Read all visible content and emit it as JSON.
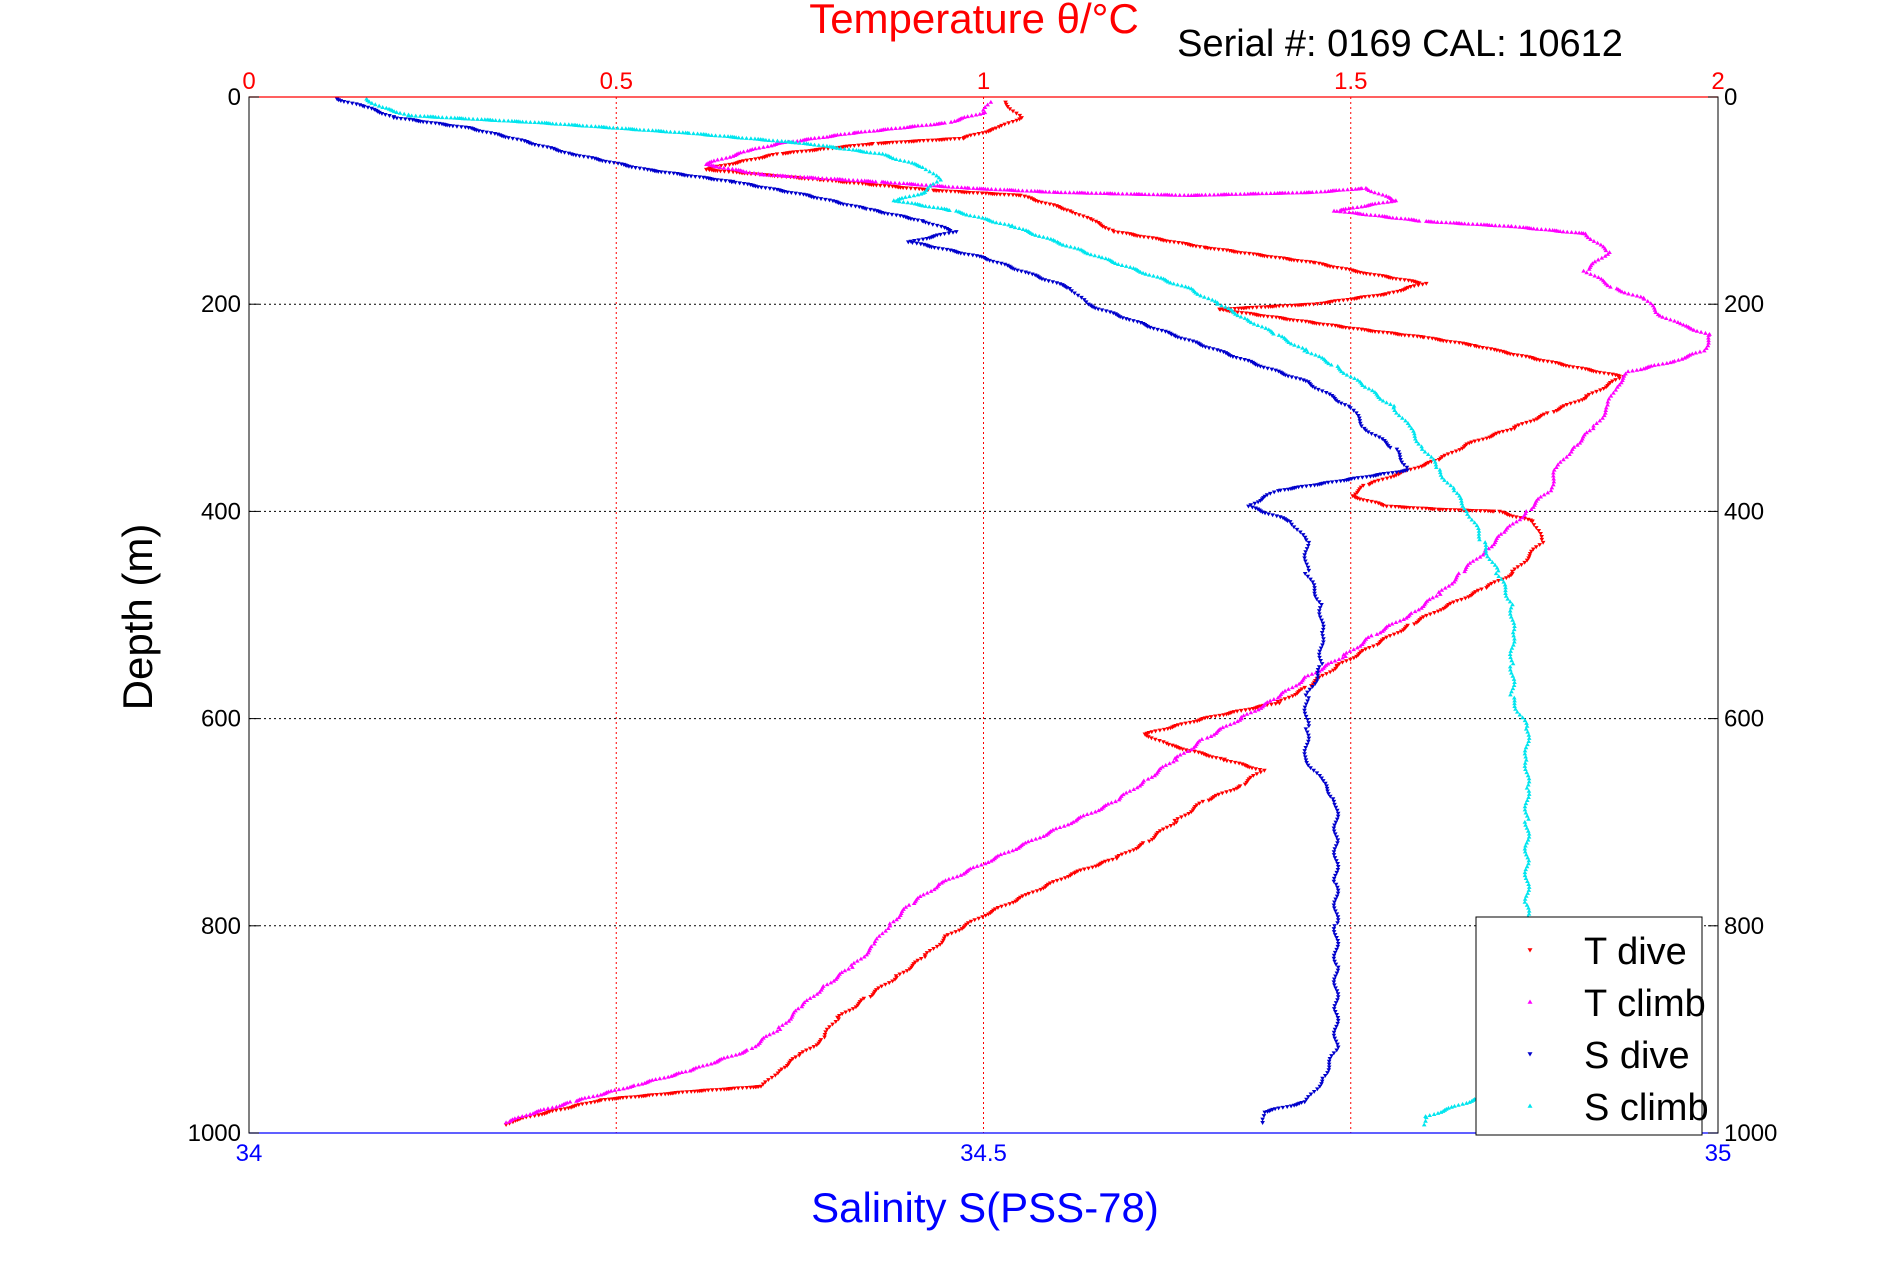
{
  "chart_data": {
    "type": "scatter",
    "title": "Temperature θ/°C",
    "subtitle": "Serial #: 0169 CAL: 10612",
    "ylabel": "Depth (m)",
    "xlabel_bottom": "Salinity S(PSS-78)",
    "xlabel_top": "Temperature θ/°C",
    "ylim": [
      0,
      1000
    ],
    "y_reversed": true,
    "xlim_temperature": [
      0,
      2
    ],
    "xlim_salinity": [
      34,
      35
    ],
    "y_ticks": [
      "0",
      "200",
      "400",
      "600",
      "800",
      "1000"
    ],
    "y_tick_values": [
      0,
      200,
      400,
      600,
      800,
      1000
    ],
    "top_ticks": [
      "0",
      "0.5",
      "1",
      "1.5",
      "2"
    ],
    "top_tick_values": [
      0,
      0.5,
      1,
      1.5,
      2
    ],
    "bottom_ticks": [
      "34",
      "34.5",
      "35"
    ],
    "bottom_tick_values": [
      34,
      34.5,
      35
    ],
    "grid": true,
    "legend_position": "bottom-right",
    "colors": {
      "t_dive": "#ff0000",
      "t_climb": "#ff00ff",
      "s_dive": "#0000cc",
      "s_climb": "#00e5ee",
      "axis_top": "#ff0000",
      "axis_bottom": "#0000ff",
      "grid_v": "#ff0000",
      "grid_h": "#000000"
    },
    "series": [
      {
        "name": "T dive",
        "axis": "temperature",
        "marker": "down-triangle",
        "points": [
          [
            1.03,
            5
          ],
          [
            1.05,
            20
          ],
          [
            1.02,
            30
          ],
          [
            0.97,
            40
          ],
          [
            0.85,
            45
          ],
          [
            0.72,
            55
          ],
          [
            0.62,
            70
          ],
          [
            0.78,
            80
          ],
          [
            0.93,
            90
          ],
          [
            1.05,
            95
          ],
          [
            1.12,
            110
          ],
          [
            1.15,
            120
          ],
          [
            1.18,
            130
          ],
          [
            1.3,
            145
          ],
          [
            1.45,
            160
          ],
          [
            1.52,
            170
          ],
          [
            1.6,
            180
          ],
          [
            1.55,
            190
          ],
          [
            1.45,
            200
          ],
          [
            1.32,
            205
          ],
          [
            1.42,
            215
          ],
          [
            1.52,
            225
          ],
          [
            1.6,
            232
          ],
          [
            1.67,
            240
          ],
          [
            1.7,
            245
          ],
          [
            1.8,
            260
          ],
          [
            1.87,
            270
          ],
          [
            1.82,
            290
          ],
          [
            1.77,
            305
          ],
          [
            1.72,
            320
          ],
          [
            1.66,
            335
          ],
          [
            1.62,
            350
          ],
          [
            1.56,
            365
          ],
          [
            1.52,
            375
          ],
          [
            1.5,
            385
          ],
          [
            1.55,
            395
          ],
          [
            1.62,
            398
          ],
          [
            1.7,
            400
          ],
          [
            1.75,
            410
          ],
          [
            1.76,
            430
          ],
          [
            1.72,
            460
          ],
          [
            1.68,
            475
          ],
          [
            1.62,
            495
          ],
          [
            1.58,
            510
          ],
          [
            1.53,
            530
          ],
          [
            1.48,
            550
          ],
          [
            1.44,
            570
          ],
          [
            1.4,
            585
          ],
          [
            1.3,
            600
          ],
          [
            1.22,
            615
          ],
          [
            1.25,
            625
          ],
          [
            1.33,
            640
          ],
          [
            1.38,
            650
          ],
          [
            1.35,
            665
          ],
          [
            1.3,
            680
          ],
          [
            1.26,
            700
          ],
          [
            1.22,
            720
          ],
          [
            1.18,
            735
          ],
          [
            1.12,
            750
          ],
          [
            1.06,
            770
          ],
          [
            1.0,
            790
          ],
          [
            0.95,
            810
          ],
          [
            0.92,
            830
          ],
          [
            0.88,
            850
          ],
          [
            0.84,
            870
          ],
          [
            0.8,
            890
          ],
          [
            0.78,
            910
          ],
          [
            0.75,
            925
          ],
          [
            0.72,
            940
          ],
          [
            0.7,
            955
          ],
          [
            0.6,
            960
          ],
          [
            0.48,
            968
          ],
          [
            0.42,
            978
          ],
          [
            0.36,
            988
          ],
          [
            0.35,
            992
          ]
        ]
      },
      {
        "name": "T climb",
        "axis": "temperature",
        "marker": "up-triangle",
        "points": [
          [
            1.01,
            5
          ],
          [
            1.0,
            15
          ],
          [
            0.95,
            25
          ],
          [
            0.82,
            35
          ],
          [
            0.72,
            45
          ],
          [
            0.68,
            52
          ],
          [
            0.62,
            65
          ],
          [
            0.7,
            75
          ],
          [
            0.86,
            82
          ],
          [
            0.98,
            88
          ],
          [
            1.1,
            92
          ],
          [
            1.28,
            95
          ],
          [
            1.45,
            92
          ],
          [
            1.52,
            88
          ],
          [
            1.56,
            100
          ],
          [
            1.48,
            110
          ],
          [
            1.6,
            120
          ],
          [
            1.72,
            125
          ],
          [
            1.82,
            132
          ],
          [
            1.85,
            150
          ],
          [
            1.82,
            168
          ],
          [
            1.86,
            185
          ],
          [
            1.9,
            195
          ],
          [
            1.92,
            210
          ],
          [
            1.95,
            220
          ],
          [
            1.99,
            230
          ],
          [
            1.98,
            245
          ],
          [
            1.94,
            255
          ],
          [
            1.88,
            265
          ],
          [
            1.86,
            280
          ],
          [
            1.85,
            300
          ],
          [
            1.83,
            320
          ],
          [
            1.8,
            340
          ],
          [
            1.78,
            360
          ],
          [
            1.77,
            380
          ],
          [
            1.74,
            400
          ],
          [
            1.71,
            420
          ],
          [
            1.68,
            440
          ],
          [
            1.65,
            460
          ],
          [
            1.62,
            480
          ],
          [
            1.58,
            500
          ],
          [
            1.53,
            520
          ],
          [
            1.49,
            540
          ],
          [
            1.44,
            560
          ],
          [
            1.4,
            580
          ],
          [
            1.35,
            600
          ],
          [
            1.3,
            620
          ],
          [
            1.26,
            640
          ],
          [
            1.22,
            660
          ],
          [
            1.18,
            680
          ],
          [
            1.12,
            700
          ],
          [
            1.06,
            720
          ],
          [
            1.0,
            740
          ],
          [
            0.94,
            760
          ],
          [
            0.9,
            780
          ],
          [
            0.87,
            800
          ],
          [
            0.85,
            820
          ],
          [
            0.82,
            840
          ],
          [
            0.78,
            860
          ],
          [
            0.75,
            880
          ],
          [
            0.72,
            900
          ],
          [
            0.68,
            920
          ],
          [
            0.6,
            940
          ],
          [
            0.52,
            955
          ],
          [
            0.44,
            970
          ],
          [
            0.38,
            982
          ],
          [
            0.35,
            990
          ]
        ]
      },
      {
        "name": "S dive",
        "axis": "salinity",
        "marker": "down-triangle",
        "points": [
          [
            34.06,
            2
          ],
          [
            34.08,
            10
          ],
          [
            34.1,
            20
          ],
          [
            34.15,
            30
          ],
          [
            34.18,
            40
          ],
          [
            34.22,
            55
          ],
          [
            34.27,
            70
          ],
          [
            34.33,
            82
          ],
          [
            34.38,
            95
          ],
          [
            34.42,
            108
          ],
          [
            34.46,
            120
          ],
          [
            34.48,
            130
          ],
          [
            34.45,
            140
          ],
          [
            34.5,
            155
          ],
          [
            34.53,
            170
          ],
          [
            34.56,
            185
          ],
          [
            34.57,
            200
          ],
          [
            34.6,
            215
          ],
          [
            34.63,
            230
          ],
          [
            34.66,
            245
          ],
          [
            34.69,
            260
          ],
          [
            34.72,
            275
          ],
          [
            34.75,
            300
          ],
          [
            34.76,
            320
          ],
          [
            34.78,
            340
          ],
          [
            34.79,
            360
          ],
          [
            34.7,
            380
          ],
          [
            34.68,
            395
          ],
          [
            34.71,
            410
          ],
          [
            34.72,
            430
          ],
          [
            34.72,
            460
          ],
          [
            34.73,
            490
          ],
          [
            34.73,
            520
          ],
          [
            34.73,
            550
          ],
          [
            34.72,
            580
          ],
          [
            34.72,
            610
          ],
          [
            34.72,
            640
          ],
          [
            34.73,
            660
          ],
          [
            34.74,
            680
          ],
          [
            34.74,
            720
          ],
          [
            34.74,
            760
          ],
          [
            34.74,
            800
          ],
          [
            34.74,
            840
          ],
          [
            34.74,
            880
          ],
          [
            34.74,
            920
          ],
          [
            34.73,
            950
          ],
          [
            34.72,
            970
          ],
          [
            34.69,
            980
          ],
          [
            34.69,
            990
          ]
        ]
      },
      {
        "name": "S climb",
        "axis": "salinity",
        "marker": "up-triangle",
        "points": [
          [
            34.08,
            2
          ],
          [
            34.09,
            10
          ],
          [
            34.11,
            18
          ],
          [
            34.2,
            25
          ],
          [
            34.3,
            35
          ],
          [
            34.38,
            45
          ],
          [
            34.43,
            55
          ],
          [
            34.46,
            68
          ],
          [
            34.47,
            80
          ],
          [
            34.46,
            92
          ],
          [
            34.44,
            100
          ],
          [
            34.48,
            110
          ],
          [
            34.52,
            125
          ],
          [
            34.55,
            140
          ],
          [
            34.58,
            155
          ],
          [
            34.61,
            170
          ],
          [
            34.64,
            185
          ],
          [
            34.66,
            200
          ],
          [
            34.68,
            215
          ],
          [
            34.7,
            230
          ],
          [
            34.72,
            245
          ],
          [
            34.74,
            260
          ],
          [
            34.76,
            280
          ],
          [
            34.78,
            300
          ],
          [
            34.79,
            320
          ],
          [
            34.8,
            340
          ],
          [
            34.81,
            360
          ],
          [
            34.82,
            380
          ],
          [
            34.83,
            400
          ],
          [
            34.84,
            430
          ],
          [
            34.85,
            460
          ],
          [
            34.86,
            490
          ],
          [
            34.86,
            520
          ],
          [
            34.86,
            550
          ],
          [
            34.86,
            580
          ],
          [
            34.87,
            610
          ],
          [
            34.87,
            640
          ],
          [
            34.87,
            670
          ],
          [
            34.87,
            700
          ],
          [
            34.87,
            740
          ],
          [
            34.87,
            780
          ],
          [
            34.87,
            820
          ],
          [
            34.87,
            860
          ],
          [
            34.87,
            900
          ],
          [
            34.86,
            940
          ],
          [
            34.85,
            960
          ],
          [
            34.82,
            975
          ],
          [
            34.8,
            985
          ],
          [
            34.8,
            992
          ]
        ]
      }
    ]
  }
}
